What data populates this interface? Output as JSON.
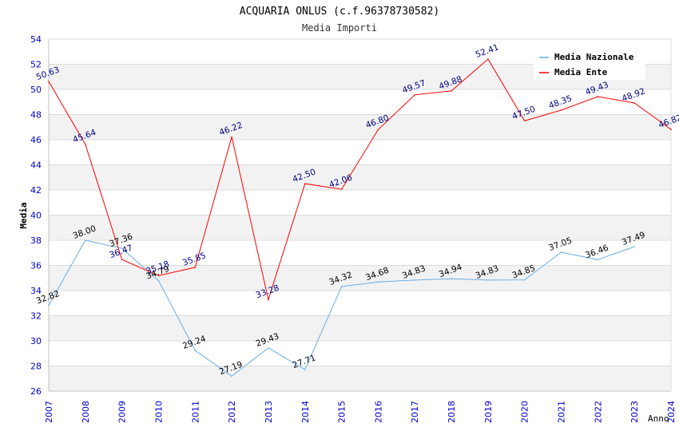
{
  "chart_data": {
    "type": "line",
    "title": "ACQUARIA ONLUS (c.f.96378730582)",
    "subtitle": "Media Importi",
    "xlabel": "Anno",
    "ylabel": "Media",
    "ylim": [
      26,
      54
    ],
    "yticks": [
      "26",
      "28",
      "30",
      "32",
      "34",
      "36",
      "38",
      "40",
      "42",
      "44",
      "46",
      "48",
      "50",
      "52",
      "54"
    ],
    "categories": [
      "2007",
      "2008",
      "2009",
      "2010",
      "2011",
      "2012",
      "2013",
      "2014",
      "2015",
      "2016",
      "2017",
      "2018",
      "2019",
      "2020",
      "2021",
      "2022",
      "2023",
      "2024"
    ],
    "legend_position": "top-right",
    "series": [
      {
        "name": "Media Nazionale",
        "color": "#6aaee6",
        "values": [
          32.82,
          38.0,
          37.36,
          34.79,
          29.24,
          27.19,
          29.43,
          27.71,
          34.32,
          34.68,
          34.83,
          34.94,
          34.83,
          34.85,
          37.05,
          36.46,
          37.49,
          null
        ],
        "labels": [
          "32.82",
          "38.00",
          "37.36",
          "34.79",
          "29.24",
          "27.19",
          "29.43",
          "27.71",
          "34.32",
          "34.68",
          "34.83",
          "34.94",
          "34.83",
          "34.85",
          "37.05",
          "36.46",
          "37.49",
          null
        ]
      },
      {
        "name": "Media Ente",
        "color": "#ff0000",
        "values": [
          50.63,
          45.64,
          36.47,
          35.18,
          35.85,
          46.22,
          33.28,
          42.5,
          42.06,
          46.8,
          49.57,
          49.88,
          52.41,
          47.5,
          48.35,
          49.43,
          48.92,
          46.82
        ],
        "labels": [
          "50.63",
          "45.64",
          "36.47",
          "35.18",
          "35.85",
          "46.22",
          "33.28",
          "42.50",
          "42.06",
          "46.80",
          "49.57",
          "49.88",
          "52.41",
          "47.50",
          "48.35",
          "49.43",
          "48.92",
          "46.82"
        ]
      }
    ]
  }
}
